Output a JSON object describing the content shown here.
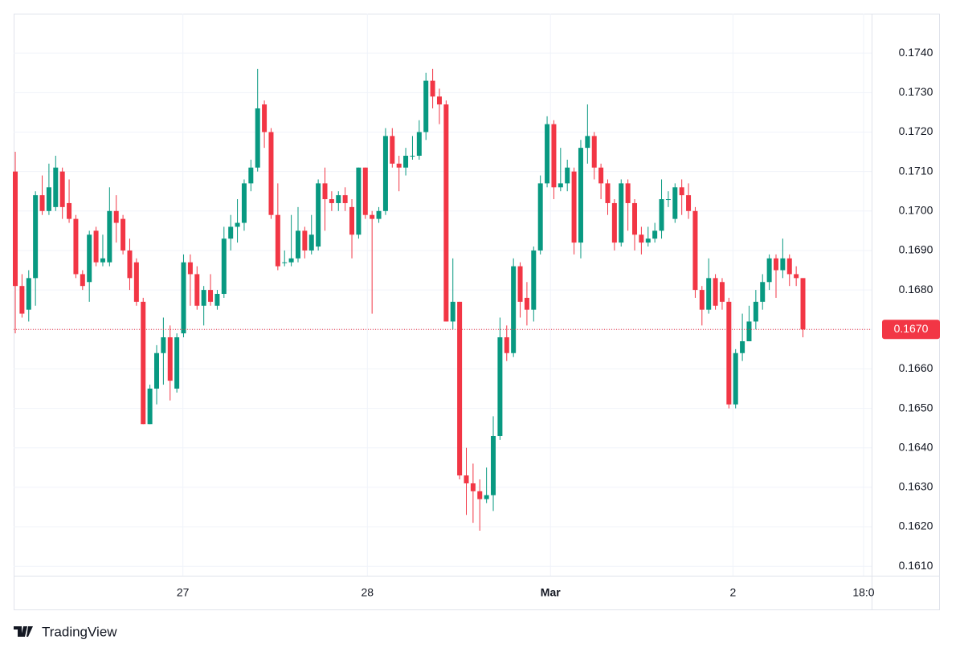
{
  "chart_data": {
    "type": "candlestick",
    "brand": "TradingView",
    "up_color": "#089981",
    "down_color": "#f23645",
    "grid": true,
    "ylim": [
      0.16076,
      0.175
    ],
    "yticks": [
      {
        "value": 0.161,
        "label": "0.1610"
      },
      {
        "value": 0.162,
        "label": "0.1620"
      },
      {
        "value": 0.163,
        "label": "0.1630"
      },
      {
        "value": 0.164,
        "label": "0.1640"
      },
      {
        "value": 0.165,
        "label": "0.1650"
      },
      {
        "value": 0.166,
        "label": "0.1660"
      },
      {
        "value": 0.167,
        "label": "0.1670"
      },
      {
        "value": 0.168,
        "label": "0.1680"
      },
      {
        "value": 0.169,
        "label": "0.1690"
      },
      {
        "value": 0.17,
        "label": "0.1700"
      },
      {
        "value": 0.171,
        "label": "0.1710"
      },
      {
        "value": 0.172,
        "label": "0.1720"
      },
      {
        "value": 0.173,
        "label": "0.1730"
      },
      {
        "value": 0.174,
        "label": "0.1740"
      }
    ],
    "xlim": [
      -0.24,
      127.2
    ],
    "xticks": [
      {
        "value": 24.9,
        "label": "27"
      },
      {
        "value": 52.3,
        "label": "28"
      },
      {
        "value": 79.5,
        "label": "Mar"
      },
      {
        "value": 106.6,
        "label": "2"
      },
      {
        "value": 126,
        "label": "18:0"
      }
    ],
    "last_price": {
      "value": 0.167,
      "label": "0.1670"
    },
    "open": [
      0.171,
      0.1681,
      0.1675,
      0.1683,
      0.1704,
      0.17,
      0.1701,
      0.171,
      0.1702,
      0.1698,
      0.1684,
      0.1682,
      0.1695,
      0.1687,
      0.1687,
      0.17,
      0.1698,
      0.169,
      0.1687,
      0.1677,
      0.1646,
      0.1655,
      0.1664,
      0.1668,
      0.1655,
      0.1669,
      0.1687,
      0.1684,
      0.1676,
      0.168,
      0.1676,
      0.1679,
      0.1693,
      0.1696,
      0.1697,
      0.1707,
      0.1711,
      0.1727,
      0.172,
      0.1699,
      0.1687,
      0.1687,
      0.1688,
      0.1695,
      0.169,
      0.1691,
      0.1707,
      0.1703,
      0.1702,
      0.1704,
      0.1701,
      0.1694,
      0.1711,
      0.1699,
      0.1698,
      0.17,
      0.1719,
      0.1712,
      0.1711,
      0.1714,
      0.1714,
      0.172,
      0.1733,
      0.1729,
      0.1727,
      0.1672,
      0.1677,
      0.1633,
      0.1631,
      0.1629,
      0.1627,
      0.1628,
      0.1643,
      0.1668,
      0.1664,
      0.1686,
      0.1678,
      0.1675,
      0.169,
      0.1707,
      0.1722,
      0.1706,
      0.1707,
      0.171,
      0.1692,
      0.1716,
      0.1719,
      0.1711,
      0.1707,
      0.1702,
      0.1692,
      0.1707,
      0.1702,
      0.1694,
      0.1692,
      0.1693,
      0.1695,
      0.1703,
      0.1698,
      0.1706,
      0.1704,
      0.17,
      0.168,
      0.1675,
      0.1683,
      0.1682,
      0.1677,
      0.1651,
      0.1664,
      0.1667,
      0.1672,
      0.1677,
      0.1682,
      0.1688,
      0.1685,
      0.1688,
      0.1684,
      0.1683
    ],
    "high": [
      0.1715,
      0.1684,
      0.1685,
      0.1705,
      0.1709,
      0.1712,
      0.1714,
      0.1711,
      0.1708,
      0.1699,
      0.1685,
      0.1695,
      0.1696,
      0.1694,
      0.1706,
      0.1704,
      0.1699,
      0.1693,
      0.1688,
      0.1678,
      0.1656,
      0.1666,
      0.1673,
      0.1671,
      0.1669,
      0.1689,
      0.1689,
      0.1686,
      0.1681,
      0.1684,
      0.168,
      0.1696,
      0.1699,
      0.1703,
      0.1708,
      0.1713,
      0.1736,
      0.1728,
      0.1721,
      0.1707,
      0.169,
      0.1699,
      0.1701,
      0.1696,
      0.1699,
      0.1708,
      0.1711,
      0.1705,
      0.1705,
      0.1706,
      0.1703,
      0.1711,
      0.1711,
      0.17,
      0.1701,
      0.1721,
      0.1721,
      0.1714,
      0.1716,
      0.1719,
      0.1723,
      0.1735,
      0.1736,
      0.1731,
      0.1728,
      0.1688,
      0.1677,
      0.164,
      0.1636,
      0.1632,
      0.1635,
      0.1648,
      0.1673,
      0.1671,
      0.1688,
      0.1687,
      0.1682,
      0.1691,
      0.1709,
      0.1724,
      0.1723,
      0.1716,
      0.1713,
      0.1711,
      0.1718,
      0.1727,
      0.172,
      0.1712,
      0.1708,
      0.1703,
      0.1708,
      0.1708,
      0.1703,
      0.1696,
      0.1696,
      0.1697,
      0.1708,
      0.1705,
      0.1707,
      0.1708,
      0.1707,
      0.1701,
      0.1681,
      0.1688,
      0.1684,
      0.1683,
      0.1678,
      0.1665,
      0.1674,
      0.1676,
      0.168,
      0.1684,
      0.1689,
      0.1689,
      0.1693,
      0.1689,
      0.1686,
      0.1683
    ],
    "low": [
      0.1669,
      0.1673,
      0.1672,
      0.1676,
      0.1699,
      0.1699,
      0.17,
      0.1698,
      0.1697,
      0.1683,
      0.168,
      0.1677,
      0.1686,
      0.1686,
      0.1686,
      0.1692,
      0.1689,
      0.168,
      0.1676,
      0.1646,
      0.1646,
      0.1651,
      0.1656,
      0.1652,
      0.1654,
      0.1668,
      0.1676,
      0.1675,
      0.1671,
      0.1676,
      0.1675,
      0.1678,
      0.169,
      0.1692,
      0.1695,
      0.1705,
      0.171,
      0.1716,
      0.1698,
      0.1685,
      0.1686,
      0.1686,
      0.1687,
      0.1688,
      0.1689,
      0.169,
      0.1695,
      0.17,
      0.17,
      0.17,
      0.1688,
      0.1693,
      0.1698,
      0.1674,
      0.1697,
      0.1699,
      0.1711,
      0.1705,
      0.1709,
      0.1713,
      0.1713,
      0.1718,
      0.1726,
      0.1722,
      0.1672,
      0.167,
      0.1632,
      0.1623,
      0.1621,
      0.1619,
      0.1626,
      0.1624,
      0.1642,
      0.1662,
      0.1663,
      0.1673,
      0.1671,
      0.1672,
      0.1689,
      0.1706,
      0.1703,
      0.1705,
      0.1705,
      0.1689,
      0.1688,
      0.1712,
      0.1708,
      0.1703,
      0.1699,
      0.169,
      0.1691,
      0.1695,
      0.169,
      0.1689,
      0.1691,
      0.1692,
      0.1693,
      0.1701,
      0.1697,
      0.1699,
      0.1698,
      0.1678,
      0.1671,
      0.1674,
      0.1675,
      0.1675,
      0.165,
      0.165,
      0.1662,
      0.1668,
      0.167,
      0.1675,
      0.168,
      0.1678,
      0.1683,
      0.1681,
      0.1681,
      0.1668
    ],
    "close": [
      0.1681,
      0.1674,
      0.1683,
      0.1704,
      0.17,
      0.1706,
      0.1711,
      0.1701,
      0.1698,
      0.1684,
      0.1681,
      0.1694,
      0.1687,
      0.1688,
      0.17,
      0.1697,
      0.169,
      0.1683,
      0.1677,
      0.1646,
      0.1655,
      0.1664,
      0.1668,
      0.1657,
      0.1668,
      0.1687,
      0.1684,
      0.1676,
      0.168,
      0.1677,
      0.1679,
      0.1693,
      0.1696,
      0.1697,
      0.1707,
      0.1711,
      0.1726,
      0.172,
      0.1699,
      0.1686,
      0.1687,
      0.1688,
      0.1695,
      0.169,
      0.1694,
      0.1707,
      0.1703,
      0.1702,
      0.1704,
      0.1702,
      0.1694,
      0.1711,
      0.1699,
      0.1698,
      0.17,
      0.1719,
      0.1712,
      0.1711,
      0.1714,
      0.1714,
      0.172,
      0.1733,
      0.1729,
      0.1727,
      0.1672,
      0.1677,
      0.1633,
      0.1631,
      0.1629,
      0.1627,
      0.1628,
      0.1643,
      0.1668,
      0.1664,
      0.1686,
      0.1677,
      0.1675,
      0.169,
      0.1707,
      0.1722,
      0.1706,
      0.1707,
      0.1711,
      0.1692,
      0.1716,
      0.1719,
      0.1711,
      0.1707,
      0.1702,
      0.1692,
      0.1707,
      0.1702,
      0.1694,
      0.1692,
      0.1693,
      0.1695,
      0.1703,
      0.1703,
      0.1706,
      0.1704,
      0.17,
      0.168,
      0.1675,
      0.1683,
      0.1676,
      0.1677,
      0.1651,
      0.1664,
      0.1667,
      0.1672,
      0.1677,
      0.1682,
      0.1688,
      0.1685,
      0.1688,
      0.1684,
      0.1683,
      0.167
    ]
  }
}
